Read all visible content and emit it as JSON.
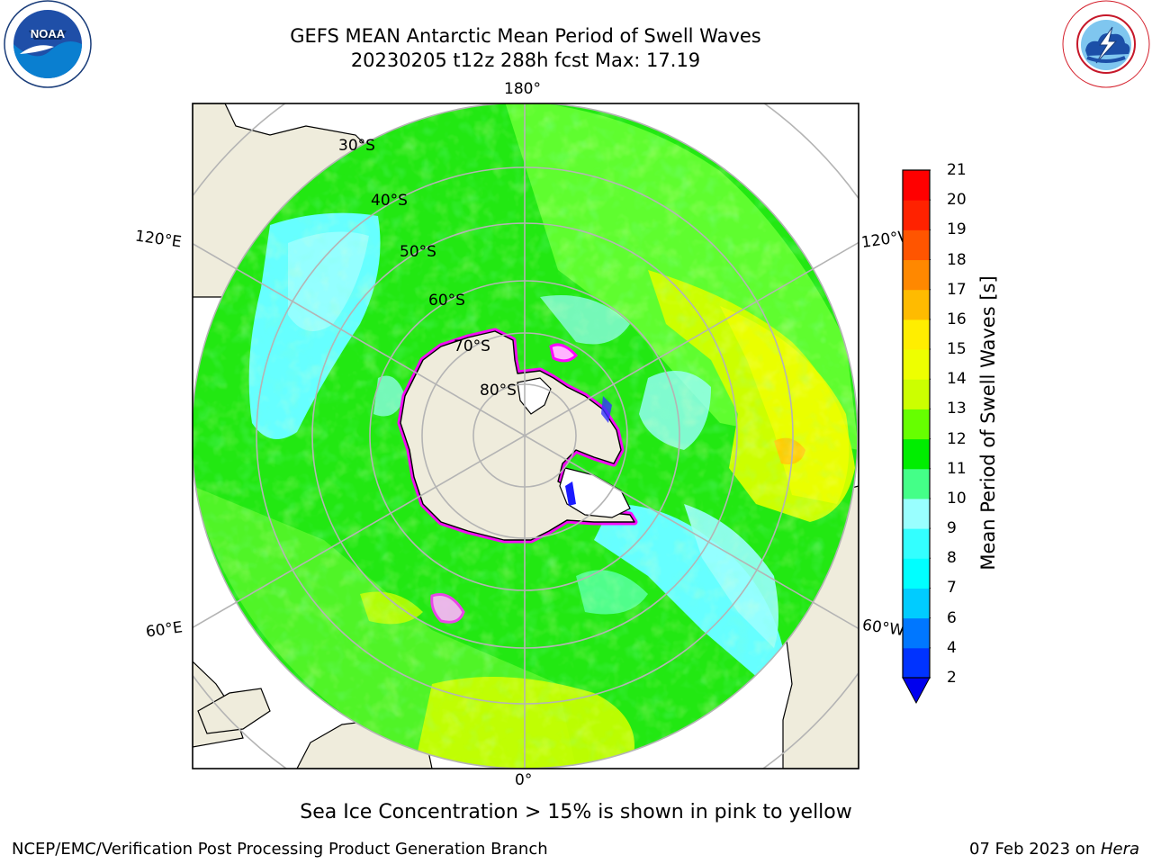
{
  "header": {
    "title_line1": "GEFS MEAN Antarctic Mean Period of Swell Waves",
    "title_line2": "20230205 t12z 288h fcst   Max: 17.19"
  },
  "map": {
    "projection": "south-polar-stereographic",
    "longitude_labels": {
      "top": "180°",
      "bottom": "0°",
      "upper_left": "120°E",
      "upper_right": "120°W",
      "lower_left": "60°E",
      "lower_right": "60°W"
    },
    "latitude_labels": [
      "30°S",
      "40°S",
      "50°S",
      "60°S",
      "70°S",
      "80°S"
    ],
    "colors": {
      "land": "#efecdc",
      "gridline": "#b4b4b4",
      "coastline": "#000000",
      "sea_ice_edge": "#ff00ff"
    }
  },
  "colorbar": {
    "label": "Mean Period of Swell Waves [s]",
    "ticks": [
      "2",
      "4",
      "6",
      "7",
      "8",
      "9",
      "10",
      "11",
      "12",
      "13",
      "14",
      "15",
      "16",
      "17",
      "18",
      "19",
      "20",
      "21"
    ],
    "colors": [
      "#0033ff",
      "#0077ff",
      "#00ccff",
      "#00ffff",
      "#33ffff",
      "#99ffff",
      "#44ff88",
      "#00ee00",
      "#66ff00",
      "#ccff00",
      "#eeff00",
      "#ffee00",
      "#ffbb00",
      "#ff8800",
      "#ff5500",
      "#ff2200",
      "#ff0000"
    ],
    "under_color": "#0000ee"
  },
  "note": "Sea Ice Concentration > 15% is shown in pink to yellow",
  "footer": {
    "left": "NCEP/EMC/Verification Post Processing Product Generation Branch",
    "right_date": "07 Feb 2023",
    "right_on": " on ",
    "right_host": "Hera"
  },
  "logos": {
    "left": "noaa-logo",
    "right": "nws-logo"
  }
}
